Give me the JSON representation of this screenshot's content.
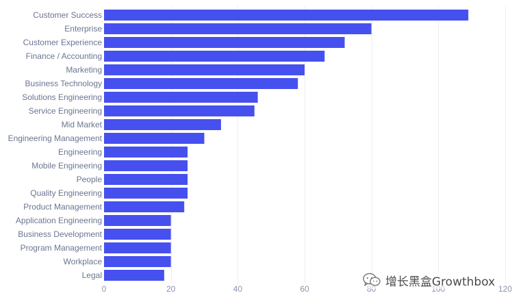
{
  "chart_data": {
    "type": "bar",
    "orientation": "horizontal",
    "categories": [
      "Customer Success",
      "Enterprise",
      "Customer Experience",
      "Finance / Accounting",
      "Marketing",
      "Business Technology",
      "Solutions Engineering",
      "Service Engineering",
      "Mid Market",
      "Engineering Management",
      "Engineering",
      "Mobile Engineering",
      "People",
      "Quality Engineering",
      "Product Management",
      "Application Engineering",
      "Business Development",
      "Program Management",
      "Workplace",
      "Legal"
    ],
    "values": [
      109,
      80,
      72,
      66,
      60,
      58,
      46,
      45,
      35,
      30,
      25,
      25,
      25,
      25,
      24,
      20,
      20,
      20,
      20,
      18
    ],
    "xlim": [
      0,
      120
    ],
    "xticks": [
      0,
      20,
      40,
      60,
      80,
      100,
      120
    ],
    "grid": true,
    "bar_color": "#4650ee",
    "title": "",
    "xlabel": "",
    "ylabel": ""
  },
  "watermark": {
    "text": "增长黑盒Growthbox",
    "icon": "wechat-icon"
  }
}
